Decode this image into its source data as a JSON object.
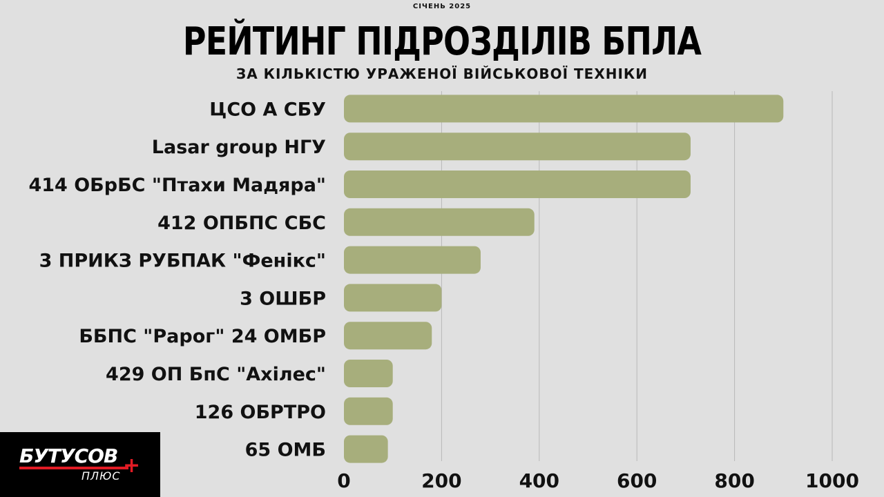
{
  "header": {
    "date": "СІЧЕНЬ 2025",
    "title": "РЕЙТИНГ ПІДРОЗДІЛІВ БПЛА",
    "subtitle": "ЗА КІЛЬКІСТЮ УРАЖЕНОЇ ВІЙСЬКОВОЇ ТЕХНІКИ"
  },
  "chart_data": {
    "type": "bar",
    "orientation": "horizontal",
    "title": "РЕЙТИНГ ПІДРОЗДІЛІВ БПЛА",
    "subtitle": "ЗА КІЛЬКІСТЮ УРАЖЕНОЇ ВІЙСЬКОВОЇ ТЕХНІКИ",
    "categories": [
      "ЦСО А СБУ",
      "Lasar group НГУ",
      "414 ОБрБС \"Птахи Мадяра\"",
      "412 ОПБПС СБС",
      "3 ПРИКЗ РУБПАК \"Фенікс\"",
      "3 ОШБР",
      "ББПС \"Рарог\" 24 ОМБР",
      "429 ОП БпС \"Ахілес\"",
      "126 ОБРТРО",
      "65 ОМБ"
    ],
    "values": [
      900,
      710,
      710,
      390,
      280,
      200,
      180,
      100,
      100,
      90
    ],
    "xlim": [
      0,
      1000
    ],
    "xticks": [
      "0",
      "200",
      "400",
      "600",
      "800",
      "1000"
    ],
    "grid": true,
    "bar_color": "#a7ae7c",
    "grid_color": "#b8b8b8"
  },
  "logo": {
    "main": "БУТУСОВ",
    "plus": "+",
    "sub": "ПЛЮС",
    "accent": "#e01b24"
  }
}
